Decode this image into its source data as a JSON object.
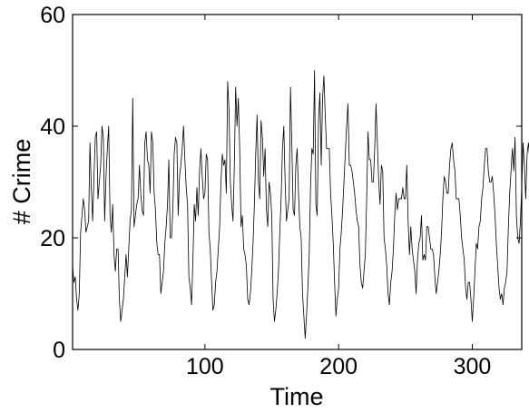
{
  "chart_data": {
    "type": "line",
    "title": "",
    "xlabel": "Time",
    "ylabel": "# Crime",
    "xlim": [
      1,
      337
    ],
    "ylim": [
      0,
      60
    ],
    "xticks": [
      100,
      200,
      300
    ],
    "yticks": [
      0,
      20,
      40,
      60
    ],
    "grid": false,
    "legend": "none",
    "line_color": "#000000",
    "series": [
      {
        "values": [
          15,
          12,
          13,
          9,
          7,
          10,
          21,
          24,
          27,
          25,
          21,
          22,
          23,
          37,
          29,
          23,
          31,
          38,
          39,
          27,
          30,
          33,
          40,
          38,
          23,
          31,
          36,
          40,
          24,
          21,
          26,
          17,
          14,
          18,
          18,
          9,
          5,
          7,
          9,
          13,
          17,
          13,
          18,
          23,
          25,
          45,
          22,
          24,
          26,
          27,
          33,
          28,
          25,
          24,
          37,
          39,
          34,
          33,
          28,
          39,
          37,
          28,
          25,
          19,
          17,
          17,
          10,
          12,
          14,
          19,
          22,
          26,
          34,
          20,
          20,
          25,
          35,
          38,
          37,
          24,
          31,
          33,
          36,
          40,
          34,
          29,
          26,
          13,
          11,
          8,
          16,
          26,
          23,
          29,
          24,
          32,
          36,
          31,
          27,
          28,
          35,
          34,
          21,
          18,
          12,
          7,
          8,
          12,
          14,
          18,
          22,
          30,
          35,
          33,
          34,
          28,
          48,
          43,
          30,
          26,
          23,
          33,
          47,
          40,
          45,
          36,
          22,
          24,
          18,
          17,
          15,
          9,
          8,
          10,
          14,
          19,
          26,
          35,
          42,
          30,
          27,
          41,
          38,
          31,
          36,
          25,
          22,
          30,
          28,
          24,
          9,
          5,
          7,
          10,
          14,
          21,
          27,
          36,
          40,
          30,
          23,
          25,
          27,
          47,
          37,
          25,
          24,
          33,
          36,
          28,
          22,
          20,
          10,
          6,
          2,
          6,
          11,
          17,
          29,
          36,
          35,
          50,
          26,
          24,
          41,
          46,
          33,
          45,
          49,
          42,
          36,
          36,
          36,
          28,
          24,
          19,
          12,
          6,
          9,
          11,
          18,
          21,
          25,
          30,
          35,
          40,
          44,
          33,
          33,
          32,
          30,
          28,
          25,
          23,
          22,
          15,
          12,
          11,
          14,
          17,
          27,
          39,
          34,
          34,
          30,
          30,
          36,
          44,
          37,
          30,
          26,
          33,
          32,
          20,
          18,
          15,
          10,
          8,
          12,
          14,
          18,
          24,
          28,
          25,
          27,
          27,
          27,
          29,
          27,
          27,
          33,
          23,
          17,
          22,
          18,
          16,
          14,
          10,
          16,
          19,
          20,
          24,
          16,
          17,
          16,
          22,
          22,
          20,
          18,
          18,
          17,
          13,
          10,
          12,
          14,
          17,
          21,
          27,
          31,
          30,
          28,
          28,
          33,
          36,
          37,
          34,
          32,
          27,
          27,
          27,
          24,
          20,
          18,
          16,
          11,
          9,
          12,
          12,
          9,
          5,
          9,
          14,
          19,
          18,
          22,
          23,
          27,
          29,
          33,
          36,
          36,
          32,
          30,
          30,
          31,
          28,
          24,
          19,
          15,
          11,
          9,
          10,
          8,
          11,
          12,
          14,
          22,
          28,
          32,
          36,
          32,
          38,
          24,
          20,
          19,
          23,
          29,
          37,
          33,
          27,
          35,
          37,
          34,
          20,
          17,
          12,
          10,
          7,
          5,
          10,
          14,
          18,
          23,
          24,
          28,
          29,
          28,
          27,
          24
        ]
      }
    ]
  }
}
